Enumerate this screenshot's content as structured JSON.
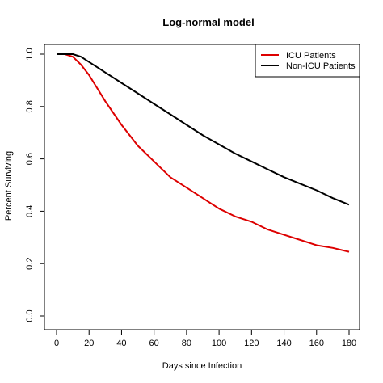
{
  "chart_data": {
    "type": "line",
    "title": "Log-normal model",
    "xlabel": "Days since Infection",
    "ylabel": "Percent Surviving",
    "xlim": [
      0,
      180
    ],
    "ylim": [
      0,
      1
    ],
    "x_ticks": [
      0,
      20,
      40,
      60,
      80,
      100,
      120,
      140,
      160,
      180
    ],
    "y_ticks": [
      0.0,
      0.2,
      0.4,
      0.6,
      0.8,
      1.0
    ],
    "y_tick_labels": [
      "0.0",
      "0.2",
      "0.4",
      "0.6",
      "0.8",
      "1.0"
    ],
    "grid": false,
    "legend_position": "top-right",
    "x": [
      0,
      5,
      10,
      15,
      20,
      25,
      30,
      40,
      50,
      60,
      70,
      80,
      90,
      100,
      110,
      120,
      130,
      140,
      150,
      160,
      170,
      180
    ],
    "series": [
      {
        "name": "ICU Patients",
        "color": "#dd0000",
        "values": [
          1.0,
          1.0,
          0.99,
          0.96,
          0.92,
          0.87,
          0.82,
          0.73,
          0.65,
          0.59,
          0.53,
          0.49,
          0.45,
          0.41,
          0.38,
          0.36,
          0.33,
          0.31,
          0.29,
          0.27,
          0.26,
          0.245
        ]
      },
      {
        "name": "Non-ICU Patients",
        "color": "#000000",
        "values": [
          1.0,
          1.0,
          1.0,
          0.99,
          0.97,
          0.95,
          0.93,
          0.89,
          0.85,
          0.81,
          0.77,
          0.73,
          0.69,
          0.655,
          0.62,
          0.59,
          0.56,
          0.53,
          0.505,
          0.48,
          0.45,
          0.425
        ]
      }
    ]
  }
}
